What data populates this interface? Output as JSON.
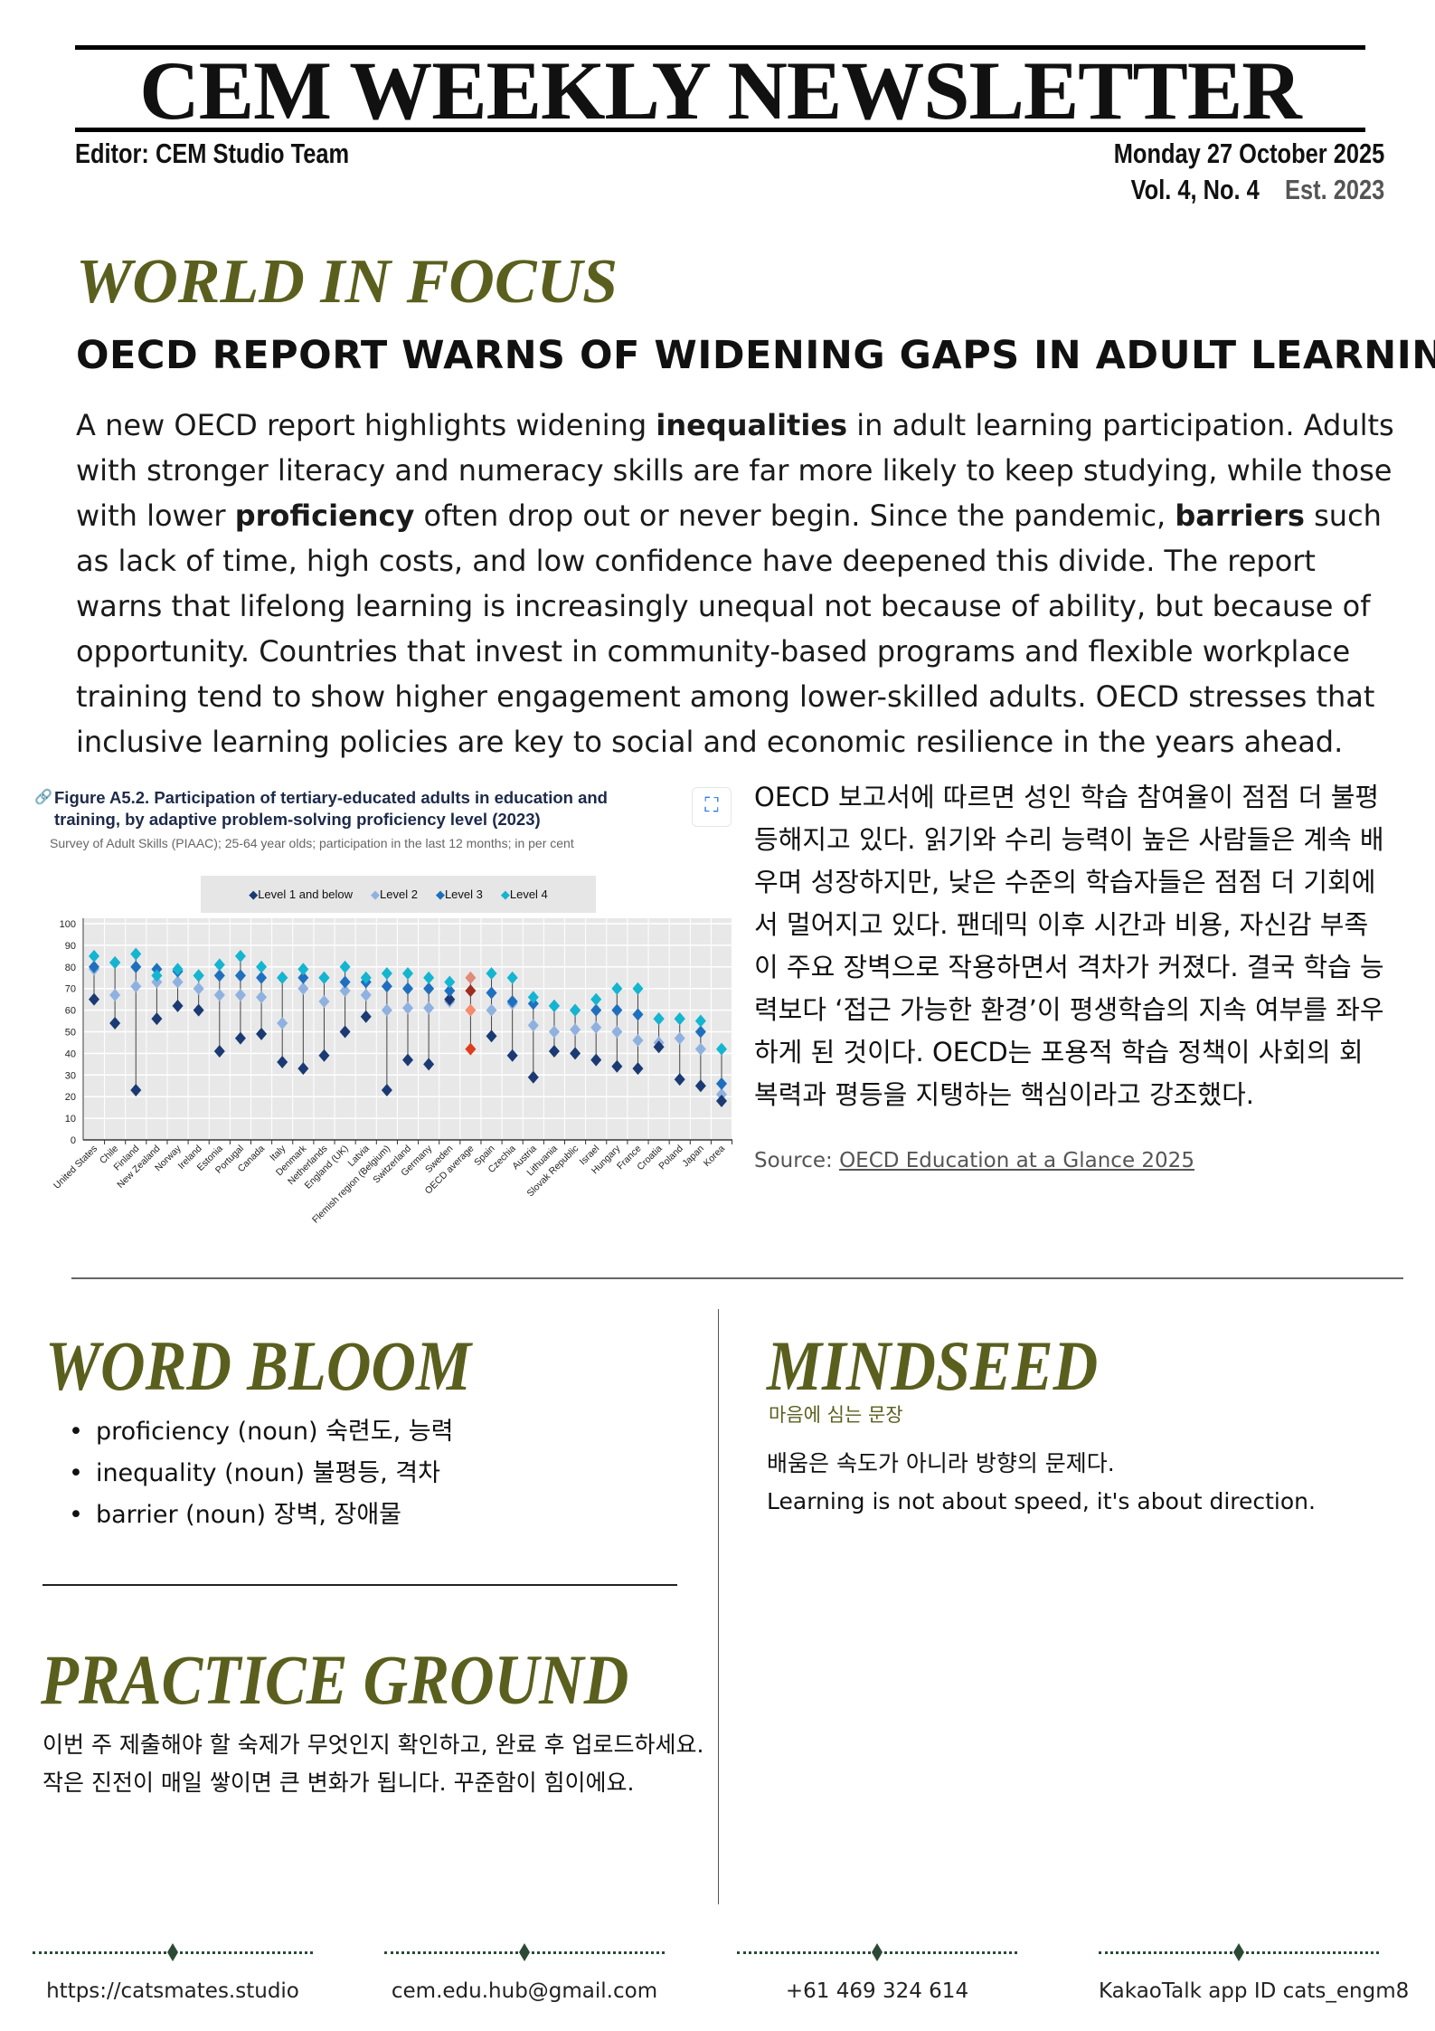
{
  "masthead": {
    "title": "CEM WEEKLY NEWSLETTER",
    "editor": "Editor: CEM Studio Team",
    "date": "Monday 27 October 2025",
    "volume": "Vol. 4,  No. 4",
    "established": "Est. 2023"
  },
  "world": {
    "section": "WORLD IN FOCUS",
    "headline": "OECD REPORT WARNS OF WIDENING GAPS IN ADULT LEARNING",
    "paragraph": [
      {
        "t": "A new OECD report highlights widening "
      },
      {
        "t": "inequalities",
        "b": true
      },
      {
        "t": " in adult learning participation. Adults with stronger literacy and numeracy skills are far more likely to keep studying, while those with lower "
      },
      {
        "t": "proficiency",
        "b": true
      },
      {
        "t": " often drop out or never begin. Since the pandemic, "
      },
      {
        "t": "barriers",
        "b": true
      },
      {
        "t": " such as lack of time, high costs, and low confidence have deepened this divide. The report warns that lifelong learning is increasingly unequal not because of ability, but because of opportunity. Countries that invest in community-based programs and flexible workplace training tend to show higher engagement among lower-skilled adults. OECD stresses that inclusive learning policies are key to social and economic resilience in the years ahead."
      }
    ],
    "korean": "OECD 보고서에 따르면 성인 학습 참여율이 점점 더 불평등해지고 있다. 읽기와 수리 능력이 높은 사람들은 계속 배우며 성장하지만, 낮은 수준의 학습자들은 점점 더 기회에서 멀어지고 있다. 팬데믹 이후 시간과 비용, 자신감 부족이 주요 장벽으로 작용하면서 격차가 커졌다. 결국 학습 능력보다 ‘접근 가능한 환경’이 평생학습의 지속 여부를 좌우하게 된 것이다. OECD는 포용적 학습 정책이 사회의 회복력과 평등을 지탱하는 핵심이라고 강조했다.",
    "source_label": "Source: ",
    "source_link": "OECD  Education at a Glance 2025"
  },
  "chart_data": {
    "type": "scatter",
    "title": "Figure A5.2. Participation of tertiary-educated adults in education and training, by adaptive problem-solving proficiency level (2023)",
    "subtitle": "Survey of Adult Skills (PIAAC); 25-64 year olds; participation in the last 12 months; in per cent",
    "link_icon": "link-icon",
    "expand_icon": "expand-icon",
    "ylim": [
      0,
      100
    ],
    "yticks": [
      0,
      10,
      20,
      30,
      40,
      50,
      60,
      70,
      80,
      90,
      100
    ],
    "grid": true,
    "legend": "top",
    "categories": [
      "United States",
      "Chile",
      "Finland",
      "New Zealand",
      "Norway",
      "Ireland",
      "Estonia",
      "Portugal",
      "Canada",
      "Italy",
      "Denmark",
      "Netherlands",
      "England (UK)",
      "Latvia",
      "Flemish region (Belgium)",
      "Switzerland",
      "Germany",
      "Sweden",
      "OECD average",
      "Spain",
      "Czechia",
      "Austria",
      "Lithuania",
      "Slovak Republic",
      "Israel",
      "Hungary",
      "France",
      "Croatia",
      "Poland",
      "Japan",
      "Korea"
    ],
    "highlight_category": "OECD average",
    "highlight_colors": [
      "#e03c1c",
      "#f58a6e",
      "#9e2c1f",
      "#e08a7a"
    ],
    "series": [
      {
        "name": "Level 1 and below",
        "color": "#1b3a73",
        "values": [
          65,
          54,
          23,
          56,
          62,
          60,
          41,
          47,
          49,
          36,
          33,
          39,
          50,
          57,
          23,
          37,
          35,
          65,
          42,
          48,
          39,
          29,
          41,
          40,
          37,
          34,
          33,
          43,
          28,
          25,
          18
        ]
      },
      {
        "name": "Level 2",
        "color": "#8fb1e0",
        "values": [
          79,
          67,
          71,
          73,
          73,
          70,
          67,
          67,
          66,
          54,
          70,
          64,
          69,
          67,
          60,
          61,
          61,
          64,
          60,
          60,
          63,
          53,
          50,
          51,
          52,
          50,
          46,
          45,
          47,
          42,
          21
        ]
      },
      {
        "name": "Level 3",
        "color": "#1f6fbf",
        "values": [
          80,
          82,
          80,
          79,
          78,
          76,
          76,
          76,
          75,
          75,
          75,
          75,
          73,
          73,
          71,
          70,
          70,
          69,
          69,
          68,
          64,
          63,
          62,
          60,
          60,
          60,
          58,
          56,
          56,
          50,
          26
        ]
      },
      {
        "name": "Level 4",
        "color": "#14b5d0",
        "values": [
          85,
          82,
          86,
          76,
          79,
          76,
          81,
          85,
          80,
          75,
          79,
          75,
          80,
          75,
          77,
          77,
          75,
          73,
          75,
          77,
          75,
          66,
          62,
          60,
          65,
          70,
          70,
          56,
          56,
          55,
          42
        ]
      }
    ]
  },
  "word_bloom": {
    "section": "WORD BLOOM",
    "items": [
      "proficiency (noun)  숙련도, 능력",
      "inequality (noun)  불평등, 격차",
      "barrier (noun)  장벽, 장애물"
    ]
  },
  "practice": {
    "section": "PRACTICE GROUND",
    "lines": [
      "이번 주 제출해야 할 숙제가 무엇인지 확인하고, 완료 후 업로드하세요.",
      "작은 진전이 매일 쌓이면 큰 변화가 됩니다. 꾸준함이 힘이에요."
    ]
  },
  "mindseed": {
    "section": "MINDSEED",
    "subtitle": "마음에 심는 문장",
    "quote_ko": "배움은 속도가 아니라 방향의 문제다.",
    "quote_en": "Learning is not about speed,  it's about direction."
  },
  "footer": [
    "https://catsmates.studio",
    "cem.edu.hub@gmail.com",
    "+61 469 324 614",
    "KakaoTalk app ID cats_engm8"
  ],
  "colors": {
    "olive": "#5b5f1e",
    "footer_green": "#2a4a35"
  }
}
